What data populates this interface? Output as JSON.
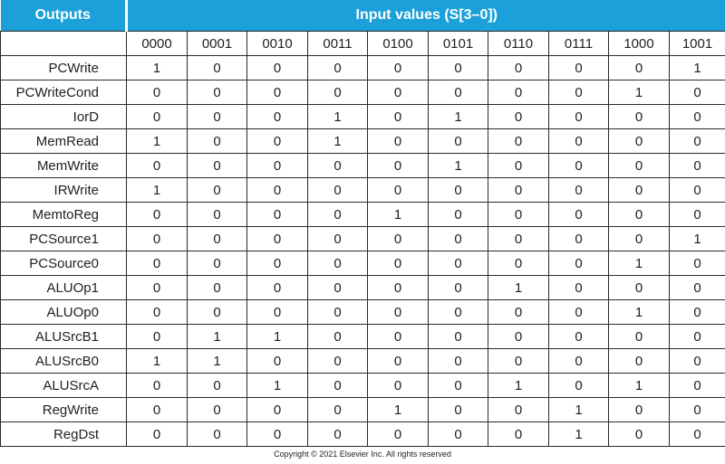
{
  "header": {
    "outputs_label": "Outputs",
    "inputs_label": "Input values (S[3–0])"
  },
  "columns": [
    "0000",
    "0001",
    "0010",
    "0011",
    "0100",
    "0101",
    "0110",
    "0111",
    "1000",
    "1001"
  ],
  "rows": [
    {
      "label": "PCWrite",
      "values": [
        "1",
        "0",
        "0",
        "0",
        "0",
        "0",
        "0",
        "0",
        "0",
        "1"
      ]
    },
    {
      "label": "PCWriteCond",
      "values": [
        "0",
        "0",
        "0",
        "0",
        "0",
        "0",
        "0",
        "0",
        "1",
        "0"
      ]
    },
    {
      "label": "IorD",
      "values": [
        "0",
        "0",
        "0",
        "1",
        "0",
        "1",
        "0",
        "0",
        "0",
        "0"
      ]
    },
    {
      "label": "MemRead",
      "values": [
        "1",
        "0",
        "0",
        "1",
        "0",
        "0",
        "0",
        "0",
        "0",
        "0"
      ]
    },
    {
      "label": "MemWrite",
      "values": [
        "0",
        "0",
        "0",
        "0",
        "0",
        "1",
        "0",
        "0",
        "0",
        "0"
      ]
    },
    {
      "label": "IRWrite",
      "values": [
        "1",
        "0",
        "0",
        "0",
        "0",
        "0",
        "0",
        "0",
        "0",
        "0"
      ]
    },
    {
      "label": "MemtoReg",
      "values": [
        "0",
        "0",
        "0",
        "0",
        "1",
        "0",
        "0",
        "0",
        "0",
        "0"
      ]
    },
    {
      "label": "PCSource1",
      "values": [
        "0",
        "0",
        "0",
        "0",
        "0",
        "0",
        "0",
        "0",
        "0",
        "1"
      ]
    },
    {
      "label": "PCSource0",
      "values": [
        "0",
        "0",
        "0",
        "0",
        "0",
        "0",
        "0",
        "0",
        "1",
        "0"
      ]
    },
    {
      "label": "ALUOp1",
      "values": [
        "0",
        "0",
        "0",
        "0",
        "0",
        "0",
        "1",
        "0",
        "0",
        "0"
      ]
    },
    {
      "label": "ALUOp0",
      "values": [
        "0",
        "0",
        "0",
        "0",
        "0",
        "0",
        "0",
        "0",
        "1",
        "0"
      ]
    },
    {
      "label": "ALUSrcB1",
      "values": [
        "0",
        "1",
        "1",
        "0",
        "0",
        "0",
        "0",
        "0",
        "0",
        "0"
      ]
    },
    {
      "label": "ALUSrcB0",
      "values": [
        "1",
        "1",
        "0",
        "0",
        "0",
        "0",
        "0",
        "0",
        "0",
        "0"
      ]
    },
    {
      "label": "ALUSrcA",
      "values": [
        "0",
        "0",
        "1",
        "0",
        "0",
        "0",
        "1",
        "0",
        "1",
        "0"
      ]
    },
    {
      "label": "RegWrite",
      "values": [
        "0",
        "0",
        "0",
        "0",
        "1",
        "0",
        "0",
        "1",
        "0",
        "0"
      ]
    },
    {
      "label": "RegDst",
      "values": [
        "0",
        "0",
        "0",
        "0",
        "0",
        "0",
        "0",
        "1",
        "0",
        "0"
      ]
    }
  ],
  "footer": {
    "copyright": "Copyright © 2021 Elsevier Inc. All rights reserved"
  }
}
